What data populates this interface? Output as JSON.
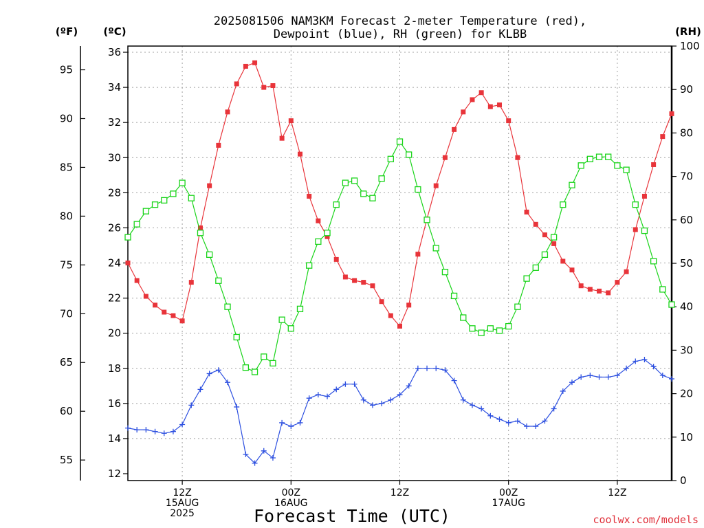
{
  "title_line1": "2025081506 NAM3KM Forecast 2-meter Temperature (red),",
  "title_line2": "Dewpoint (blue), RH (green) for KLBB",
  "unit_f": "(ºF)",
  "unit_c": "(ºC)",
  "unit_rh": "(RH)",
  "credit": "coolwx.com/models",
  "colors": {
    "temp": "#e8343a",
    "dewpoint": "#2c4fe0",
    "rh": "#18d418",
    "grid": "#a0a0a0",
    "axis": "#000000"
  },
  "chart_data": {
    "type": "line",
    "title": "2025081506 NAM3KM Forecast 2-meter Temperature (red), Dewpoint (blue), RH (green) for KLBB",
    "xlabel": "Forecast Time (UTC)",
    "x_unit": "hours since 2025-08-15 06Z",
    "x": [
      0,
      1,
      2,
      3,
      4,
      5,
      6,
      7,
      8,
      9,
      10,
      11,
      12,
      13,
      14,
      15,
      16,
      17,
      18,
      19,
      20,
      21,
      22,
      23,
      24,
      25,
      26,
      27,
      28,
      29,
      30,
      31,
      32,
      33,
      34,
      35,
      36,
      37,
      38,
      39,
      40,
      41,
      42,
      43,
      44,
      45,
      46,
      47,
      48,
      49,
      50,
      51,
      52,
      53,
      54,
      55,
      56,
      57,
      58,
      59,
      60
    ],
    "xlim": [
      0,
      60
    ],
    "x_ticks": [
      {
        "x": 6,
        "lines": [
          "12Z",
          "15AUG",
          "2025"
        ]
      },
      {
        "x": 18,
        "lines": [
          "00Z",
          "16AUG"
        ]
      },
      {
        "x": 30,
        "lines": [
          "12Z"
        ]
      },
      {
        "x": 42,
        "lines": [
          "00Z",
          "17AUG"
        ]
      },
      {
        "x": 54,
        "lines": [
          "12Z"
        ]
      }
    ],
    "left_axis_c": {
      "ylim": [
        12,
        36
      ],
      "ticks": [
        12,
        14,
        16,
        18,
        20,
        22,
        24,
        26,
        28,
        30,
        32,
        34,
        36
      ]
    },
    "left_axis_f": {
      "ticks": [
        55,
        60,
        65,
        70,
        75,
        80,
        85,
        90,
        95
      ]
    },
    "right_axis_rh": {
      "ylim": [
        0,
        100
      ],
      "ticks": [
        0,
        10,
        20,
        30,
        40,
        50,
        60,
        70,
        80,
        90,
        100
      ]
    },
    "grid": true,
    "series": [
      {
        "name": "Temperature",
        "axis": "C",
        "marker": "square-filled",
        "values": [
          24.0,
          23.0,
          22.1,
          21.6,
          21.2,
          21.0,
          20.7,
          22.9,
          26.0,
          28.4,
          30.7,
          32.6,
          34.2,
          35.2,
          35.4,
          34.0,
          34.1,
          31.1,
          32.1,
          30.2,
          27.8,
          26.4,
          25.5,
          24.2,
          23.2,
          23.0,
          22.9,
          22.7,
          21.8,
          21.0,
          20.4,
          21.6,
          24.5,
          26.5,
          28.4,
          30.0,
          31.6,
          32.6,
          33.3,
          33.7,
          32.9,
          33.0,
          32.1,
          30.0,
          26.9,
          26.2,
          25.6,
          25.1,
          24.1,
          23.6,
          22.7,
          22.5,
          22.4,
          22.3,
          22.9,
          23.5,
          25.9,
          27.8,
          29.6,
          31.2,
          32.5
        ]
      },
      {
        "name": "Dewpoint",
        "axis": "C",
        "marker": "plus",
        "values": [
          14.6,
          14.5,
          14.5,
          14.4,
          14.3,
          14.4,
          14.8,
          15.9,
          16.8,
          17.7,
          17.9,
          17.2,
          15.8,
          13.1,
          12.6,
          13.3,
          12.9,
          14.9,
          14.7,
          14.9,
          16.3,
          16.5,
          16.4,
          16.8,
          17.1,
          17.1,
          16.2,
          15.9,
          16.0,
          16.2,
          16.5,
          17.0,
          18.0,
          18.0,
          18.0,
          17.9,
          17.3,
          16.2,
          15.9,
          15.7,
          15.3,
          15.1,
          14.9,
          15.0,
          14.7,
          14.7,
          15.0,
          15.7,
          16.7,
          17.2,
          17.5,
          17.6,
          17.5,
          17.5,
          17.6,
          18.0,
          18.4,
          18.5,
          18.1,
          17.6,
          17.4
        ]
      },
      {
        "name": "RH",
        "axis": "RH",
        "marker": "square-open",
        "values": [
          56,
          59,
          62,
          63.5,
          64.5,
          66,
          68.5,
          65,
          57,
          52,
          46,
          40,
          33,
          26,
          25,
          28.5,
          27,
          37,
          35,
          39.5,
          49.5,
          55,
          57,
          63.5,
          68.5,
          69,
          66,
          65,
          69.5,
          74,
          78,
          75,
          67,
          60,
          53.5,
          48,
          42.5,
          37.5,
          35,
          34,
          35,
          34.5,
          35.5,
          40,
          46.5,
          49,
          52,
          56,
          63.5,
          68,
          72.5,
          74,
          74.5,
          74.5,
          72.5,
          71.5,
          63.5,
          57.5,
          50.5,
          44,
          40.5
        ]
      }
    ]
  }
}
